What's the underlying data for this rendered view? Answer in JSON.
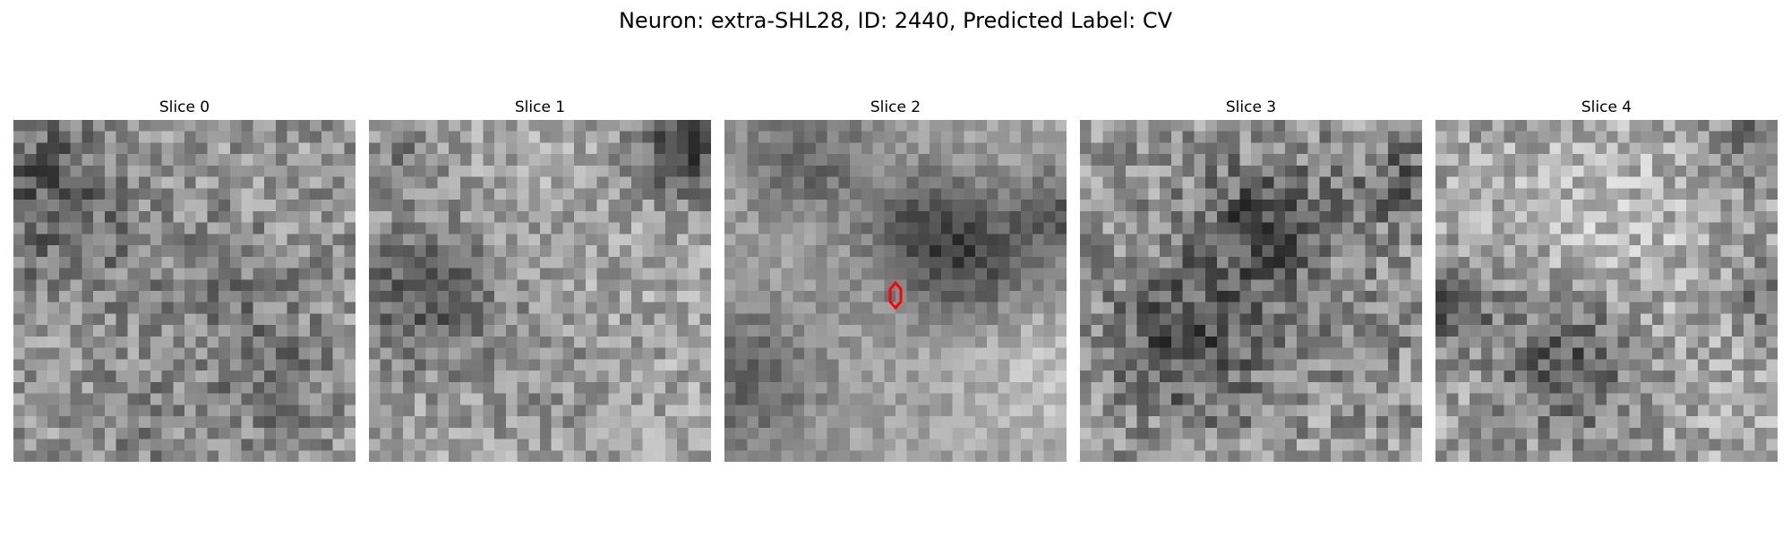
{
  "figure": {
    "title": "Neuron: extra-SHL28, ID: 2440, Predicted Label: CV"
  },
  "slices": [
    {
      "label": "Slice 0"
    },
    {
      "label": "Slice 1"
    },
    {
      "label": "Slice 2"
    },
    {
      "label": "Slice 3"
    },
    {
      "label": "Slice 4"
    }
  ],
  "image_style": {
    "colormap": "gray",
    "marker_color": "#ff0000",
    "marker_shape": "hexagon",
    "marker_slice_label": "Slice 2"
  }
}
